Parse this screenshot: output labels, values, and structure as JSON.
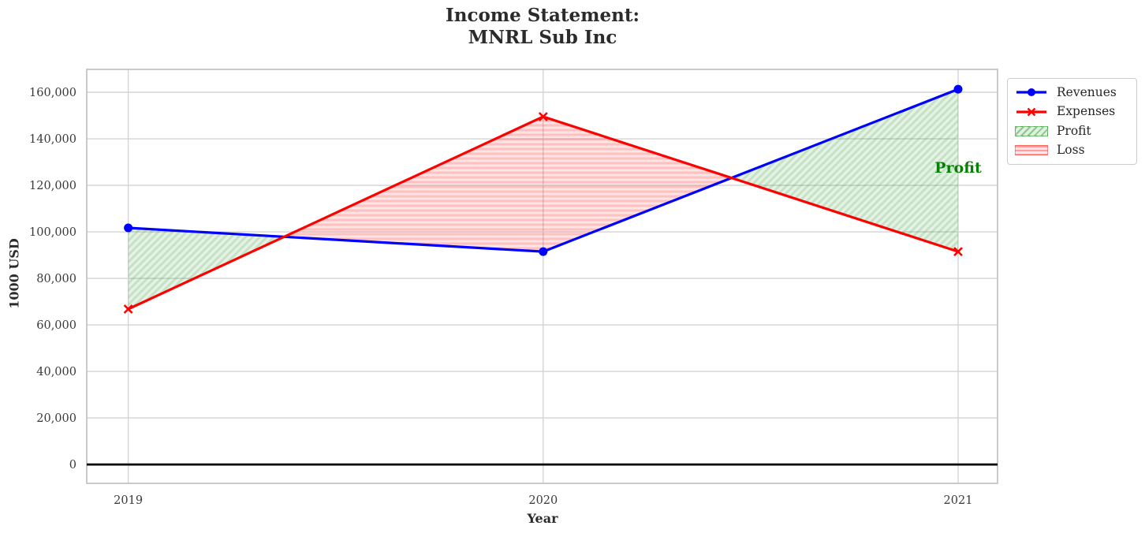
{
  "chart_data": {
    "type": "line",
    "title": "Income Statement:\nMNRL Sub Inc",
    "title_line1": "Income Statement:",
    "title_line2": "MNRL Sub Inc",
    "xlabel": "Year",
    "ylabel": "1000 USD",
    "x": [
      2019,
      2020,
      2021
    ],
    "x_tick_labels": [
      "2019",
      "2020",
      "2021"
    ],
    "series": [
      {
        "name": "Revenues",
        "color": "#0000ff",
        "marker": "circle",
        "values": [
          101700,
          91500,
          161300
        ]
      },
      {
        "name": "Expenses",
        "color": "#ff0000",
        "marker": "x",
        "values": [
          66800,
          149500,
          91500
        ]
      }
    ],
    "fill_regions": [
      {
        "name": "Profit",
        "condition": "revenues >= expenses",
        "color": "#008000",
        "hatch": "diagonal"
      },
      {
        "name": "Loss",
        "condition": "expenses > revenues",
        "color": "#ff0000",
        "hatch": "horizontal"
      }
    ],
    "annotation": {
      "text": "Profit",
      "x": 2021,
      "y": 127500,
      "color": "#068006"
    },
    "ytick_values": [
      0,
      20000,
      40000,
      60000,
      80000,
      100000,
      120000,
      140000,
      160000
    ],
    "ytick_labels": [
      "0",
      "20,000",
      "40,000",
      "60,000",
      "80,000",
      "100,000",
      "120,000",
      "140,000",
      "160,000"
    ],
    "xlim": [
      2018.9,
      2021.095
    ],
    "ylim": [
      -8100,
      169830
    ],
    "grid": true,
    "zero_line": {
      "y": 0,
      "color": "#000000"
    },
    "legend": {
      "position": "upper-right-outside",
      "entries": [
        "Revenues",
        "Expenses",
        "Profit",
        "Loss"
      ]
    }
  }
}
